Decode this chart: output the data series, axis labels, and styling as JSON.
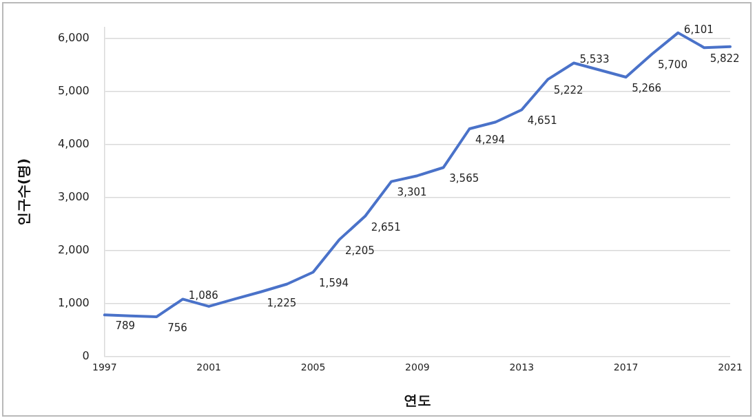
{
  "chart_data": {
    "type": "line",
    "xlabel": "연도",
    "ylabel": "인구수(명)",
    "x": [
      1997,
      1998,
      1999,
      2000,
      2001,
      2002,
      2003,
      2004,
      2005,
      2006,
      2007,
      2008,
      2009,
      2010,
      2011,
      2012,
      2013,
      2014,
      2015,
      2016,
      2017,
      2018,
      2019,
      2020,
      2021
    ],
    "series": [
      {
        "color": "#4a72c9",
        "values": [
          789,
          770,
          756,
          1086,
          950,
          1090,
          1225,
          1370,
          1594,
          2205,
          2651,
          3301,
          3410,
          3565,
          4294,
          4420,
          4651,
          5222,
          5533,
          5400,
          5266,
          5700,
          6101,
          5822,
          5840
        ],
        "value_labels": [
          "789",
          null,
          "756",
          "1,086",
          null,
          null,
          "1,225",
          null,
          "1,594",
          "2,205",
          "2,651",
          "3,301",
          null,
          "3,565",
          "4,294",
          null,
          "4,651",
          "5,222",
          "5,533",
          null,
          "5,266",
          "5,700",
          "6,101",
          "5,822",
          null
        ]
      }
    ],
    "xlim": [
      1997,
      2021
    ],
    "xticks": [
      1997,
      2001,
      2005,
      2009,
      2013,
      2017,
      2021
    ],
    "ylim": [
      0,
      6200
    ],
    "yticks": [
      {
        "value": 0,
        "label": "0"
      },
      {
        "value": 1000,
        "label": "1,000"
      },
      {
        "value": 2000,
        "label": "2,000"
      },
      {
        "value": 3000,
        "label": "3,000"
      },
      {
        "value": 4000,
        "label": "4,000"
      },
      {
        "value": 5000,
        "label": "5,000"
      },
      {
        "value": 6000,
        "label": "6,000"
      }
    ],
    "grid": "y",
    "legend": false,
    "marker": "none",
    "line_style": "solid"
  }
}
